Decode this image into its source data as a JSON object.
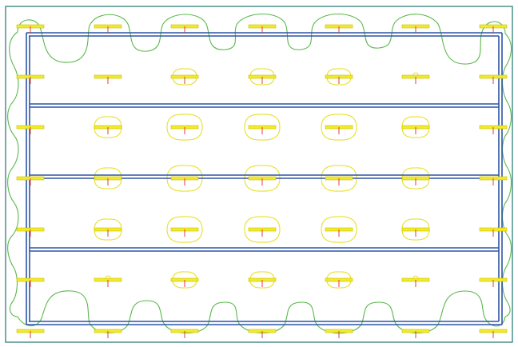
{
  "colors": {
    "background": "#ffffff",
    "border": "#2f7f7a",
    "rails": "#2b55a5",
    "luminaire": "#f2ea2a",
    "luminaire_edge": "#c9bf00",
    "direction_mark": "#e0403a",
    "contour_outer": "#5ab84a",
    "contour_inner": "#e8e02a"
  },
  "luminaire_grid": {
    "columns": 7,
    "rows": 7
  }
}
